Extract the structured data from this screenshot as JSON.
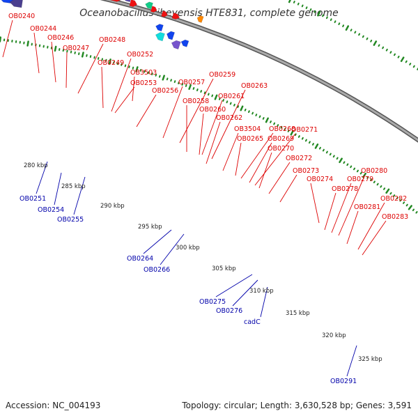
{
  "title": "Oceanobacillus iheyensis HTE831, complete genome",
  "footer": {
    "accession": "Accession: NC_004193",
    "summary": "Topology: circular; Length: 3,630,528 bp; Genes: 3,591"
  },
  "colors": {
    "backbone": "#888888",
    "tick": "#228822",
    "top_label": "#dd0000",
    "bottom_label": "#0000aa",
    "leader_top": "#dd0000",
    "leader_bottom": "#0000aa"
  },
  "scale": {
    "labels": [
      "280 kbp",
      "285 kbp",
      "290 kbp",
      "295 kbp",
      "300 kbp",
      "305 kbp",
      "310 kbp",
      "315 kbp",
      "320 kbp",
      "325 kbp"
    ]
  },
  "top_labels": [
    "OB0240",
    "OB0244",
    "OB0246",
    "OB0247",
    "OB0248",
    "OB0249",
    "OB0252",
    "OB3503",
    "OB0253",
    "OB0256",
    "OB0257",
    "OB0259",
    "OB0258",
    "OB0261",
    "OB0263",
    "OB0260",
    "OB0262",
    "OB3504",
    "OB0268",
    "OB0271",
    "OB0265",
    "OB0269",
    "OB0270",
    "OB0272",
    "OB0273",
    "OB0274",
    "OB0278",
    "OB0280",
    "OB0279",
    "OB0282",
    "OB0281",
    "OB0283"
  ],
  "bottom_labels": [
    "OB0251",
    "OB0254",
    "OB0255",
    "OB0264",
    "OB0266",
    "OB0275",
    "OB0276",
    "cadC",
    "OB0291"
  ]
}
